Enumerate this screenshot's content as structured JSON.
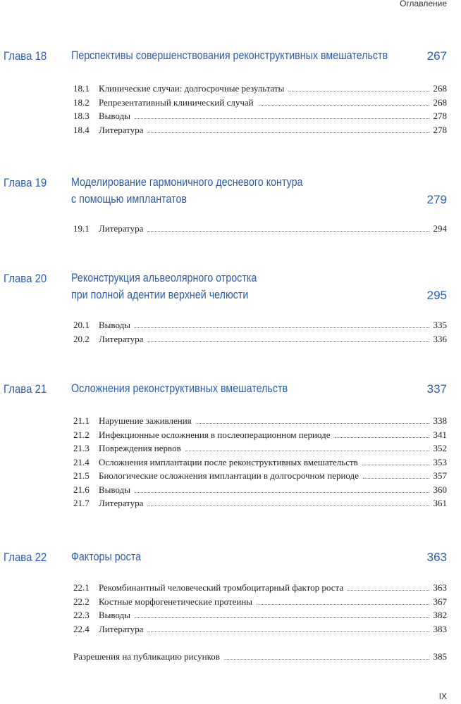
{
  "header": "Оглавление",
  "footer": "IX",
  "chapters": [
    {
      "label": "Глава 18",
      "title": [
        "Перспективы совершенствования реконструктивных вмешательств"
      ],
      "page": "267",
      "items": [
        [
          "18.1",
          "Клинические случаи: долгосрочные результаты",
          "268"
        ],
        [
          "18.2",
          "Репрезентативный клинический случай",
          "268"
        ],
        [
          "18.3",
          "Выводы",
          "278"
        ],
        [
          "18.4",
          "Литература",
          "278"
        ]
      ]
    },
    {
      "label": "Глава 19",
      "title": [
        "Моделирование гармоничного десневого контура",
        "с помощью имплантатов"
      ],
      "page": "279",
      "items": [
        [
          "19.1",
          "Литература",
          "294"
        ]
      ]
    },
    {
      "label": "Глава 20",
      "title": [
        "Реконструкция альвеолярного отростка",
        "при полной адентии верхней челюсти"
      ],
      "page": "295",
      "items": [
        [
          "20.1",
          "Выводы",
          "335"
        ],
        [
          "20.2",
          "Литература",
          "336"
        ]
      ]
    },
    {
      "label": "Глава 21",
      "title": [
        "Осложнения реконструктивных вмешательств"
      ],
      "page": "337",
      "items": [
        [
          "21.1",
          "Нарушение заживления",
          "338"
        ],
        [
          "21.2",
          "Инфекционные осложнения в послеоперационном периоде",
          "341"
        ],
        [
          "21.3",
          "Повреждения нервов",
          "352"
        ],
        [
          "21.4",
          "Осложнения имплантации после реконструктивных вмешательств",
          "353"
        ],
        [
          "21.5",
          "Биологические осложнения имплантации в долгосрочном периоде",
          "357"
        ],
        [
          "21.6",
          "Выводы",
          "360"
        ],
        [
          "21.7",
          "Литература",
          "361"
        ]
      ]
    },
    {
      "label": "Глава 22",
      "title": [
        "Факторы роста"
      ],
      "page": "363",
      "items": [
        [
          "22.1",
          "Рекомбинантный человеческий тромбоцитарный фактор роста",
          "363"
        ],
        [
          "22.2",
          "Костные морфогенетические протеины",
          "367"
        ],
        [
          "22.3",
          "Выводы",
          "382"
        ],
        [
          "22.4",
          "Литература",
          "383"
        ]
      ]
    }
  ],
  "extra": {
    "title": "Разрешения на публикацию рисунков",
    "page": "385"
  }
}
